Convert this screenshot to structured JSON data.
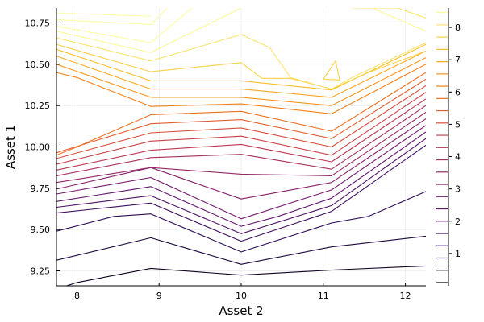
{
  "chart_data": {
    "type": "contour",
    "title": "",
    "xlabel": "Asset 2",
    "ylabel": "Asset 1",
    "xlim": [
      7.75,
      12.25
    ],
    "ylim": [
      9.16,
      10.84
    ],
    "x_ticks": [
      8,
      9,
      10,
      11,
      12
    ],
    "x_tick_labels": [
      "8",
      "9",
      "10",
      "11",
      "12"
    ],
    "y_ticks": [
      9.25,
      9.5,
      9.75,
      10.0,
      10.25,
      10.5,
      10.75
    ],
    "y_tick_labels": [
      "9.25",
      "9.50",
      "9.75",
      "10.00",
      "10.25",
      "10.50",
      "10.75"
    ],
    "grid": true,
    "colorbar": {
      "range": [
        0,
        8.6
      ],
      "ticks": [
        1,
        2,
        3,
        4,
        5,
        6,
        7,
        8
      ],
      "tick_labels": [
        "1",
        "2",
        "3",
        "4",
        "5",
        "6",
        "7",
        "8"
      ],
      "levels": [
        0.1,
        0.48,
        0.86,
        1.24,
        1.62,
        2.0,
        2.38,
        2.76,
        3.14,
        3.52,
        3.9,
        4.28,
        4.66,
        5.04,
        5.42,
        5.8,
        6.18,
        6.56,
        6.94,
        7.32,
        7.7,
        8.08,
        8.46
      ],
      "colormap": "inferno"
    },
    "contour_lines": [
      {
        "level": 0.48,
        "x": [
          7.75,
          8.0,
          8.9,
          10.0,
          11.1,
          12.25
        ],
        "y": [
          9.14,
          9.18,
          9.265,
          9.225,
          9.255,
          9.28
        ]
      },
      {
        "level": 0.86,
        "x": [
          7.75,
          8.9,
          10.0,
          11.1,
          12.25
        ],
        "y": [
          9.315,
          9.45,
          9.29,
          9.395,
          9.46
        ]
      },
      {
        "level": 1.24,
        "x": [
          7.75,
          8.45,
          8.9,
          10.0,
          11.1,
          11.55,
          12.25
        ],
        "y": [
          9.49,
          9.58,
          9.595,
          9.365,
          9.54,
          9.58,
          9.73
        ]
      },
      {
        "level": 1.62,
        "x": [
          7.75,
          8.9,
          10.0,
          11.1,
          12.25
        ],
        "y": [
          9.6,
          9.66,
          9.43,
          9.61,
          10.01
        ]
      },
      {
        "level": 2.0,
        "x": [
          7.75,
          8.9,
          10.0,
          11.1,
          12.25
        ],
        "y": [
          9.635,
          9.705,
          9.475,
          9.645,
          10.05
        ]
      },
      {
        "level": 2.38,
        "x": [
          7.75,
          8.9,
          10.0,
          10.45,
          11.1,
          12.25
        ],
        "y": [
          9.67,
          9.76,
          9.52,
          9.58,
          9.69,
          10.09
        ]
      },
      {
        "level": 2.76,
        "x": [
          7.75,
          8.9,
          10.0,
          11.1,
          12.25
        ],
        "y": [
          9.715,
          9.815,
          9.565,
          9.74,
          10.13
        ]
      },
      {
        "level": 3.14,
        "x": [
          7.75,
          8.9,
          10.0,
          11.1,
          12.25
        ],
        "y": [
          9.745,
          9.875,
          9.685,
          9.785,
          10.17
        ]
      },
      {
        "level": 3.52,
        "x": [
          7.75,
          8.9,
          10.0,
          11.1,
          12.25
        ],
        "y": [
          9.785,
          9.875,
          9.835,
          9.825,
          10.21
        ]
      },
      {
        "level": 3.9,
        "x": [
          7.75,
          8.9,
          10.0,
          11.1,
          12.25
        ],
        "y": [
          9.825,
          9.935,
          9.955,
          9.865,
          10.25
        ]
      },
      {
        "level": 4.28,
        "x": [
          7.75,
          8.9,
          10.0,
          11.1,
          12.25
        ],
        "y": [
          9.86,
          9.98,
          10.015,
          9.91,
          10.29
        ]
      },
      {
        "level": 4.66,
        "x": [
          7.75,
          8.9,
          10.0,
          11.1,
          12.25
        ],
        "y": [
          9.895,
          10.035,
          10.065,
          9.95,
          10.33
        ]
      },
      {
        "level": 5.04,
        "x": [
          7.75,
          8.9,
          10.0,
          11.1,
          12.25
        ],
        "y": [
          9.93,
          10.085,
          10.115,
          10.0,
          10.37
        ]
      },
      {
        "level": 5.42,
        "x": [
          7.75,
          8.9,
          10.0,
          11.1,
          12.25
        ],
        "y": [
          9.965,
          10.14,
          10.165,
          10.05,
          10.41
        ]
      },
      {
        "level": 5.8,
        "x": [
          7.75,
          8.0,
          8.9,
          10.0,
          11.1,
          12.25
        ],
        "y": [
          9.95,
          10.0,
          10.195,
          10.215,
          10.095,
          10.45
        ]
      },
      {
        "level": 6.18,
        "x": [
          7.75,
          8.0,
          8.9,
          10.0,
          11.1,
          12.25
        ],
        "y": [
          10.45,
          10.42,
          10.245,
          10.26,
          10.2,
          10.5
        ]
      },
      {
        "level": 6.56,
        "x": [
          7.75,
          8.9,
          10.0,
          11.1,
          12.25
        ],
        "y": [
          10.5,
          10.3,
          10.3,
          10.25,
          10.54
        ]
      },
      {
        "level": 6.94,
        "x": [
          7.75,
          8.9,
          10.0,
          11.1,
          12.25
        ],
        "y": [
          10.55,
          10.35,
          10.35,
          10.3,
          10.58
        ]
      },
      {
        "level": 7.32,
        "x": [
          7.75,
          8.9,
          10.0,
          11.1,
          12.25
        ],
        "y": [
          10.59,
          10.4,
          10.4,
          10.345,
          10.62
        ]
      },
      {
        "level": 7.7,
        "x": [
          7.75,
          8.9,
          10.0,
          10.25,
          10.6,
          11.1,
          11.55,
          12.25
        ],
        "y": [
          10.62,
          10.455,
          10.51,
          10.415,
          10.415,
          10.35,
          10.45,
          10.58
        ]
      },
      {
        "level": 7.7,
        "x": [
          11.0,
          11.15,
          11.2,
          11.0
        ],
        "y": [
          10.41,
          10.52,
          10.405,
          10.41
        ]
      },
      {
        "level": 8.08,
        "x": [
          7.75,
          8.9,
          10.0,
          10.35,
          10.6,
          11.1,
          11.35,
          12.25
        ],
        "y": [
          10.66,
          10.52,
          10.68,
          10.6,
          10.42,
          10.35,
          10.42,
          10.63
        ]
      },
      {
        "level": 8.08,
        "x": [
          11.35,
          11.9,
          12.25
        ],
        "y": [
          10.84,
          10.84,
          10.78
        ]
      },
      {
        "level": 8.46,
        "x": [
          7.75,
          8.9,
          10.0
        ],
        "y": [
          10.7,
          10.57,
          10.84
        ]
      },
      {
        "level": 8.46,
        "x": [
          11.6,
          12.25
        ],
        "y": [
          10.84,
          10.7
        ]
      },
      {
        "level": 8.6,
        "x": [
          7.75,
          8.9,
          9.4
        ],
        "y": [
          10.73,
          10.63,
          10.84
        ]
      },
      {
        "level": 8.6,
        "x": [
          7.75,
          8.9,
          9.1
        ],
        "y": [
          10.77,
          10.74,
          10.84
        ]
      },
      {
        "level": 8.6,
        "x": [
          7.75,
          8.9
        ],
        "y": [
          10.81,
          10.79
        ]
      }
    ]
  }
}
